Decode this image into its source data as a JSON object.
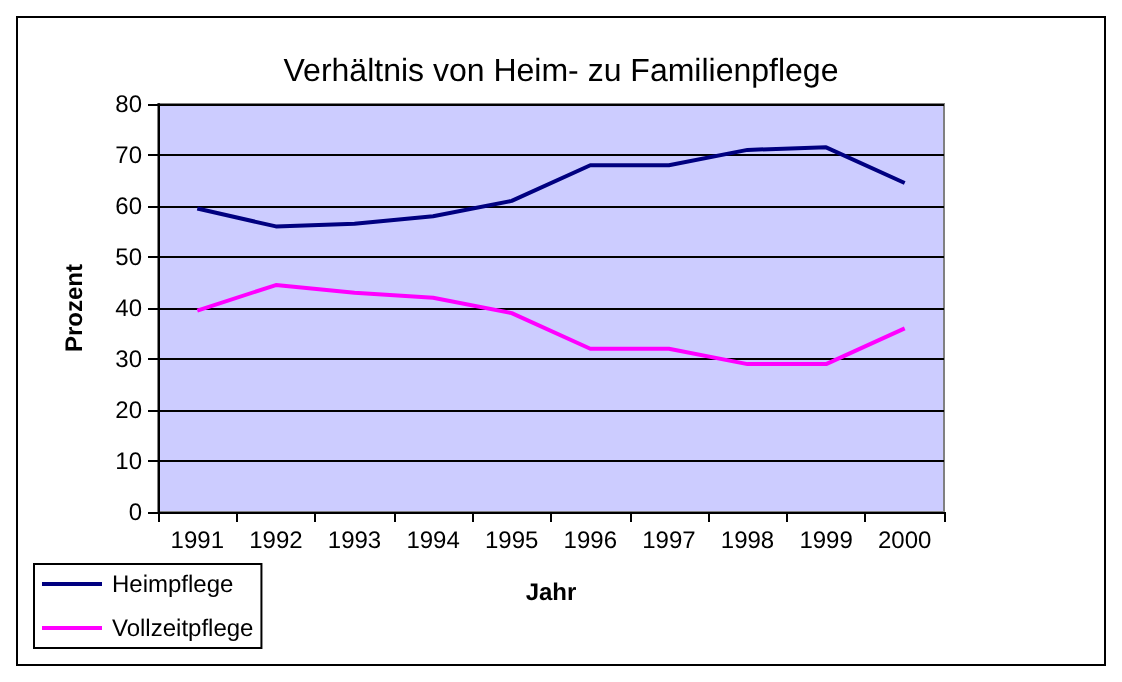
{
  "chart_data": {
    "type": "line",
    "title": "Verhältnis von Heim- zu Familienpflege",
    "xlabel": "Jahr",
    "ylabel": "Prozent",
    "categories": [
      "1991",
      "1992",
      "1993",
      "1994",
      "1995",
      "1996",
      "1997",
      "1998",
      "1999",
      "2000"
    ],
    "series": [
      {
        "name": "Heimpflege",
        "color": "#000080",
        "values": [
          59.5,
          56,
          56.5,
          58,
          61,
          68,
          68,
          71,
          71.5,
          64.5
        ]
      },
      {
        "name": "Vollzeitpflege",
        "color": "#ff00ff",
        "values": [
          39.5,
          44.5,
          43,
          42,
          39,
          32,
          32,
          29,
          29,
          36
        ]
      }
    ],
    "ylim": [
      0,
      80
    ],
    "yticks": [
      0,
      10,
      20,
      30,
      40,
      50,
      60,
      70,
      80
    ],
    "grid": "y",
    "legend": "bottom left",
    "marker": "none",
    "line_style": "solid"
  }
}
